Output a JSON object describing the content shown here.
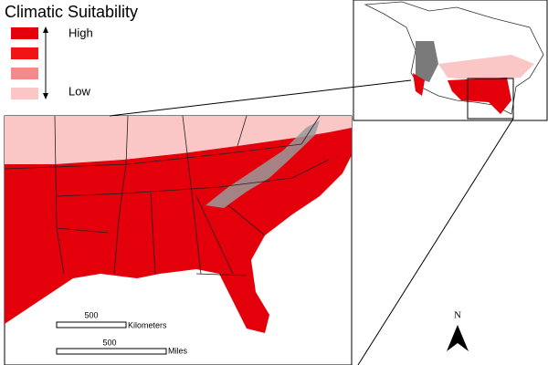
{
  "legend": {
    "title": "Climatic Suitability",
    "high_label": "High",
    "low_label": "Low",
    "colors": [
      "#e3000b",
      "#f01414",
      "#f58a8a",
      "#fbc6c6"
    ]
  },
  "scale_bars": [
    {
      "distance": "500",
      "unit": "Kilometers"
    },
    {
      "distance": "500",
      "unit": "Miles"
    }
  ],
  "north_arrow": "N"
}
